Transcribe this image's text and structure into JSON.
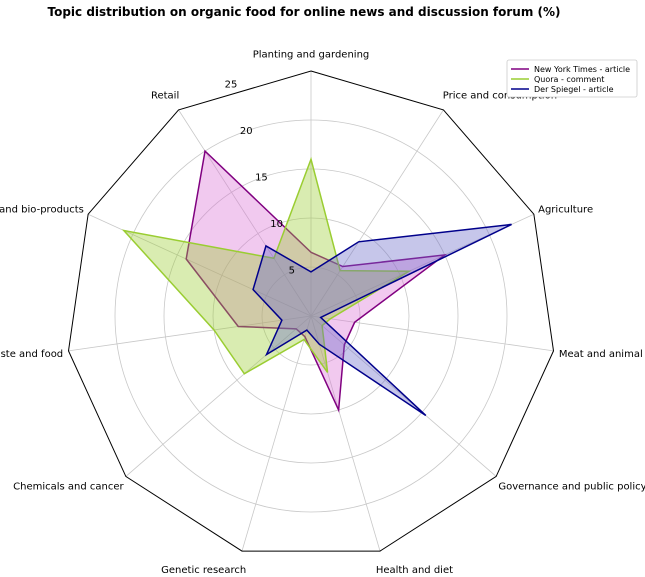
{
  "chart_data": {
    "type": "radar",
    "title": "Topic distribution on organic food for online news and discussion forum (%)",
    "categories": [
      "Planting and gardening",
      "Price and consumption",
      "Agriculture",
      "Meat and animal feeding",
      "Governance and public policy",
      "Health and diet",
      "Genetic research",
      "Chemicals and cancer",
      "Taste and food",
      "GMO label and bio-products",
      "Retail"
    ],
    "rticks": [
      5,
      10,
      15,
      20,
      25
    ],
    "rlim": [
      0,
      25
    ],
    "legend_position": "top-right",
    "grid": true,
    "series": [
      {
        "name": "New York Times - article",
        "color": "#800080",
        "fill": "#da70d6",
        "values": [
          6.5,
          6.0,
          15.0,
          4.5,
          4.5,
          10.0,
          2.2,
          2.0,
          7.5,
          14.0,
          20.0
        ]
      },
      {
        "name": "Quora - comment",
        "color": "#9acd32",
        "fill": "#9acd32",
        "values": [
          16.0,
          5.5,
          11.0,
          2.0,
          1.5,
          6.0,
          2.5,
          9.0,
          10.0,
          21.0,
          7.0
        ]
      },
      {
        "name": "Der Spiegel - article",
        "color": "#00008b",
        "fill": "#6a6ac8",
        "values": [
          4.5,
          9.0,
          22.5,
          1.0,
          15.5,
          3.0,
          1.5,
          6.0,
          3.0,
          6.5,
          8.5
        ]
      }
    ]
  }
}
